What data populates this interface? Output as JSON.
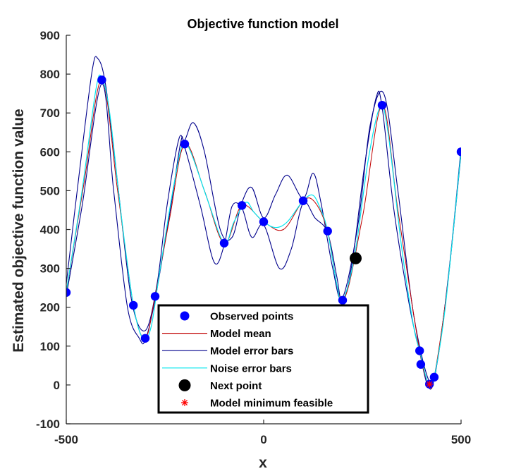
{
  "chart_data": {
    "type": "line",
    "title": "Objective function model",
    "xlabel": "x",
    "ylabel": "Estimated objective function value",
    "xlim": [
      -500,
      500
    ],
    "ylim": [
      -100,
      900
    ],
    "xticks": [
      -500,
      0,
      500
    ],
    "yticks": [
      -100,
      0,
      100,
      200,
      300,
      400,
      500,
      600,
      700,
      800,
      900
    ],
    "grid": false,
    "legend_position": "bottom-center",
    "colors": {
      "observed": "#0000ff",
      "model_mean": "#c00000",
      "model_error": "#00008b",
      "noise_error": "#00e5ee",
      "next_point": "#000000",
      "model_min": "#ff0000",
      "axes": "#262626"
    },
    "series": [
      {
        "name": "Observed points",
        "kind": "scatter",
        "points": [
          {
            "x": -500,
            "y": 238
          },
          {
            "x": -410,
            "y": 785
          },
          {
            "x": -330,
            "y": 205
          },
          {
            "x": -300,
            "y": 120
          },
          {
            "x": -275,
            "y": 228
          },
          {
            "x": -200,
            "y": 620
          },
          {
            "x": -100,
            "y": 365
          },
          {
            "x": -55,
            "y": 462
          },
          {
            "x": 0,
            "y": 420
          },
          {
            "x": 100,
            "y": 474
          },
          {
            "x": 162,
            "y": 396
          },
          {
            "x": 200,
            "y": 218
          },
          {
            "x": 300,
            "y": 720
          },
          {
            "x": 395,
            "y": 88
          },
          {
            "x": 398,
            "y": 53
          },
          {
            "x": 420,
            "y": 2
          },
          {
            "x": 432,
            "y": 20
          },
          {
            "x": 500,
            "y": 600
          }
        ]
      },
      {
        "name": "Model mean",
        "kind": "line",
        "points": [
          {
            "x": -500,
            "y": 238
          },
          {
            "x": -455,
            "y": 520
          },
          {
            "x": -410,
            "y": 785
          },
          {
            "x": -370,
            "y": 500
          },
          {
            "x": -330,
            "y": 205
          },
          {
            "x": -300,
            "y": 120
          },
          {
            "x": -275,
            "y": 228
          },
          {
            "x": -238,
            "y": 430
          },
          {
            "x": -200,
            "y": 620
          },
          {
            "x": -150,
            "y": 500
          },
          {
            "x": -100,
            "y": 365
          },
          {
            "x": -55,
            "y": 462
          },
          {
            "x": 0,
            "y": 420
          },
          {
            "x": 50,
            "y": 400
          },
          {
            "x": 100,
            "y": 474
          },
          {
            "x": 130,
            "y": 470
          },
          {
            "x": 162,
            "y": 396
          },
          {
            "x": 200,
            "y": 218
          },
          {
            "x": 250,
            "y": 430
          },
          {
            "x": 300,
            "y": 720
          },
          {
            "x": 340,
            "y": 450
          },
          {
            "x": 395,
            "y": 88
          },
          {
            "x": 420,
            "y": 2
          },
          {
            "x": 432,
            "y": 20
          },
          {
            "x": 465,
            "y": 250
          },
          {
            "x": 500,
            "y": 600
          }
        ]
      },
      {
        "name": "Model error bars",
        "kind": "line",
        "upper": [
          {
            "x": -500,
            "y": 260
          },
          {
            "x": -470,
            "y": 520
          },
          {
            "x": -435,
            "y": 805
          },
          {
            "x": -420,
            "y": 840
          },
          {
            "x": -400,
            "y": 770
          },
          {
            "x": -370,
            "y": 520
          },
          {
            "x": -335,
            "y": 220
          },
          {
            "x": -300,
            "y": 140
          },
          {
            "x": -270,
            "y": 260
          },
          {
            "x": -245,
            "y": 460
          },
          {
            "x": -215,
            "y": 632
          },
          {
            "x": -200,
            "y": 630
          },
          {
            "x": -178,
            "y": 675
          },
          {
            "x": -150,
            "y": 600
          },
          {
            "x": -110,
            "y": 400
          },
          {
            "x": -80,
            "y": 380
          },
          {
            "x": -55,
            "y": 470
          },
          {
            "x": -30,
            "y": 508
          },
          {
            "x": 0,
            "y": 430
          },
          {
            "x": 30,
            "y": 490
          },
          {
            "x": 60,
            "y": 540
          },
          {
            "x": 100,
            "y": 480
          },
          {
            "x": 125,
            "y": 545
          },
          {
            "x": 145,
            "y": 470
          },
          {
            "x": 175,
            "y": 300
          },
          {
            "x": 200,
            "y": 225
          },
          {
            "x": 240,
            "y": 420
          },
          {
            "x": 270,
            "y": 670
          },
          {
            "x": 305,
            "y": 748
          },
          {
            "x": 340,
            "y": 500
          },
          {
            "x": 380,
            "y": 180
          },
          {
            "x": 420,
            "y": 8
          },
          {
            "x": 440,
            "y": 60
          },
          {
            "x": 470,
            "y": 300
          },
          {
            "x": 500,
            "y": 610
          }
        ],
        "lower": [
          {
            "x": -500,
            "y": 230
          },
          {
            "x": -460,
            "y": 460
          },
          {
            "x": -410,
            "y": 775
          },
          {
            "x": -380,
            "y": 500
          },
          {
            "x": -345,
            "y": 200
          },
          {
            "x": -315,
            "y": 120
          },
          {
            "x": -300,
            "y": 115
          },
          {
            "x": -275,
            "y": 220
          },
          {
            "x": -235,
            "y": 460
          },
          {
            "x": -210,
            "y": 625
          },
          {
            "x": -200,
            "y": 612
          },
          {
            "x": -160,
            "y": 460
          },
          {
            "x": -125,
            "y": 315
          },
          {
            "x": -100,
            "y": 360
          },
          {
            "x": -80,
            "y": 460
          },
          {
            "x": -55,
            "y": 455
          },
          {
            "x": -30,
            "y": 380
          },
          {
            "x": 0,
            "y": 412
          },
          {
            "x": 40,
            "y": 300
          },
          {
            "x": 70,
            "y": 350
          },
          {
            "x": 100,
            "y": 468
          },
          {
            "x": 130,
            "y": 430
          },
          {
            "x": 162,
            "y": 392
          },
          {
            "x": 185,
            "y": 280
          },
          {
            "x": 200,
            "y": 212
          },
          {
            "x": 225,
            "y": 320
          },
          {
            "x": 255,
            "y": 560
          },
          {
            "x": 285,
            "y": 740
          },
          {
            "x": 300,
            "y": 715
          },
          {
            "x": 330,
            "y": 450
          },
          {
            "x": 370,
            "y": 200
          },
          {
            "x": 395,
            "y": 85
          },
          {
            "x": 415,
            "y": 0
          },
          {
            "x": 432,
            "y": 18
          },
          {
            "x": 465,
            "y": 250
          },
          {
            "x": 500,
            "y": 595
          }
        ]
      },
      {
        "name": "Noise error bars",
        "kind": "line",
        "points": [
          {
            "x": -500,
            "y": 240
          },
          {
            "x": -460,
            "y": 500
          },
          {
            "x": -425,
            "y": 760
          },
          {
            "x": -410,
            "y": 790
          },
          {
            "x": -390,
            "y": 700
          },
          {
            "x": -360,
            "y": 430
          },
          {
            "x": -330,
            "y": 205
          },
          {
            "x": -305,
            "y": 118
          },
          {
            "x": -285,
            "y": 150
          },
          {
            "x": -265,
            "y": 280
          },
          {
            "x": -230,
            "y": 500
          },
          {
            "x": -205,
            "y": 620
          },
          {
            "x": -185,
            "y": 600
          },
          {
            "x": -140,
            "y": 470
          },
          {
            "x": -100,
            "y": 365
          },
          {
            "x": -75,
            "y": 420
          },
          {
            "x": -45,
            "y": 470
          },
          {
            "x": -25,
            "y": 445
          },
          {
            "x": 0,
            "y": 420
          },
          {
            "x": 30,
            "y": 405
          },
          {
            "x": 60,
            "y": 420
          },
          {
            "x": 100,
            "y": 474
          },
          {
            "x": 125,
            "y": 488
          },
          {
            "x": 145,
            "y": 450
          },
          {
            "x": 162,
            "y": 396
          },
          {
            "x": 185,
            "y": 260
          },
          {
            "x": 200,
            "y": 218
          },
          {
            "x": 230,
            "y": 330
          },
          {
            "x": 265,
            "y": 580
          },
          {
            "x": 295,
            "y": 715
          },
          {
            "x": 315,
            "y": 650
          },
          {
            "x": 350,
            "y": 350
          },
          {
            "x": 380,
            "y": 150
          },
          {
            "x": 395,
            "y": 88
          },
          {
            "x": 410,
            "y": 25
          },
          {
            "x": 420,
            "y": 2
          },
          {
            "x": 432,
            "y": 20
          },
          {
            "x": 460,
            "y": 200
          },
          {
            "x": 500,
            "y": 600
          }
        ]
      },
      {
        "name": "Next point",
        "kind": "scatter",
        "points": [
          {
            "x": 233,
            "y": 326
          }
        ]
      },
      {
        "name": "Model minimum feasible",
        "kind": "scatter",
        "points": [
          {
            "x": 420,
            "y": 2
          }
        ]
      }
    ],
    "legend": [
      {
        "label": "Observed points",
        "marker": "dot",
        "color": "#0000ff"
      },
      {
        "label": "Model mean",
        "marker": "line",
        "color": "#c00000"
      },
      {
        "label": "Model error bars",
        "marker": "line",
        "color": "#00008b"
      },
      {
        "label": "Noise error bars",
        "marker": "line",
        "color": "#00e5ee"
      },
      {
        "label": "Next point",
        "marker": "big-dot",
        "color": "#000000"
      },
      {
        "label": "Model minimum feasible",
        "marker": "asterisk",
        "color": "#ff0000"
      }
    ]
  }
}
